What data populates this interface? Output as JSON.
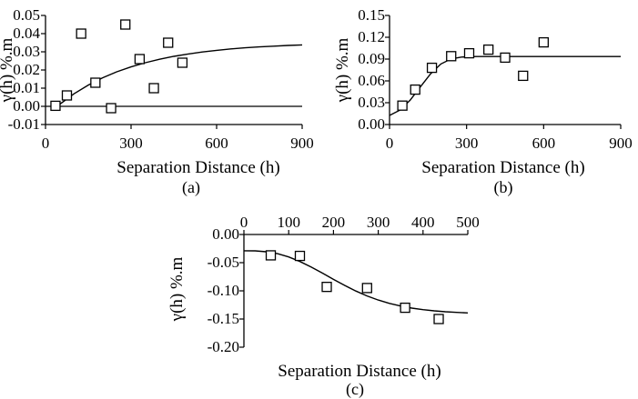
{
  "chart_data": [
    {
      "type": "scatter",
      "panel_label": "(a)",
      "xlabel": "Separation Distance (h)",
      "ylabel": "γ(h) %.m",
      "xlim": [
        0,
        900
      ],
      "ylim": [
        -0.01,
        0.05
      ],
      "xticks": [
        "0",
        "300",
        "600",
        "900"
      ],
      "yticks": [
        "-0.01",
        "0.00",
        "0.01",
        "0.02",
        "0.03",
        "0.04",
        "0.05"
      ],
      "zero_line": true,
      "points": [
        [
          35,
          0.0003
        ],
        [
          75,
          0.006
        ],
        [
          125,
          0.04
        ],
        [
          175,
          0.013
        ],
        [
          230,
          -0.001
        ],
        [
          280,
          0.045
        ],
        [
          330,
          0.026
        ],
        [
          380,
          0.01
        ],
        [
          430,
          0.035
        ],
        [
          480,
          0.024
        ]
      ],
      "model_curve": [
        [
          40,
          0.0
        ],
        [
          100,
          0.0069
        ],
        [
          150,
          0.0117
        ],
        [
          200,
          0.0157
        ],
        [
          250,
          0.019
        ],
        [
          300,
          0.0217
        ],
        [
          350,
          0.024
        ],
        [
          400,
          0.0259
        ],
        [
          450,
          0.0275
        ],
        [
          500,
          0.0288
        ],
        [
          550,
          0.0299
        ],
        [
          600,
          0.0308
        ],
        [
          650,
          0.0316
        ],
        [
          700,
          0.0322
        ],
        [
          750,
          0.0327
        ],
        [
          800,
          0.0331
        ],
        [
          850,
          0.0335
        ],
        [
          900,
          0.0338
        ]
      ]
    },
    {
      "type": "scatter",
      "panel_label": "(b)",
      "xlabel": "Separation Distance (h)",
      "ylabel": "γ(h) %.m",
      "xlim": [
        0,
        900
      ],
      "ylim": [
        0,
        0.15
      ],
      "xticks": [
        "0",
        "300",
        "600",
        "900"
      ],
      "yticks": [
        "0.00",
        "0.03",
        "0.06",
        "0.09",
        "0.12",
        "0.15"
      ],
      "zero_line": false,
      "points": [
        [
          50,
          0.026
        ],
        [
          100,
          0.048
        ],
        [
          165,
          0.078
        ],
        [
          240,
          0.094
        ],
        [
          310,
          0.098
        ],
        [
          385,
          0.103
        ],
        [
          450,
          0.092
        ],
        [
          520,
          0.067
        ],
        [
          600,
          0.113
        ]
      ],
      "model_curve": [
        [
          0,
          0.0125
        ],
        [
          40,
          0.0198
        ],
        [
          80,
          0.0334
        ],
        [
          120,
          0.0518
        ],
        [
          160,
          0.0699
        ],
        [
          200,
          0.0832
        ],
        [
          240,
          0.0903
        ],
        [
          280,
          0.0928
        ],
        [
          320,
          0.0934
        ],
        [
          340,
          0.0935
        ],
        [
          900,
          0.0935
        ]
      ]
    },
    {
      "type": "scatter",
      "panel_label": "(c)",
      "xlabel": "Separation Distance (h)",
      "ylabel": "γ(h) %.m",
      "xlim": [
        0,
        500
      ],
      "ylim": [
        -0.2,
        0
      ],
      "xaxis_position": "top",
      "xticks": [
        "0",
        "100",
        "200",
        "300",
        "400",
        "500"
      ],
      "yticks": [
        "0.00",
        "-0.05",
        "-0.10",
        "-0.15",
        "-0.20"
      ],
      "zero_line": false,
      "points": [
        [
          60,
          -0.037
        ],
        [
          125,
          -0.038
        ],
        [
          185,
          -0.093
        ],
        [
          275,
          -0.095
        ],
        [
          360,
          -0.13
        ],
        [
          435,
          -0.15
        ]
      ],
      "model_curve": [
        [
          0,
          -0.0288
        ],
        [
          25,
          -0.029
        ],
        [
          50,
          -0.0306
        ],
        [
          75,
          -0.0341
        ],
        [
          100,
          -0.0399
        ],
        [
          125,
          -0.0479
        ],
        [
          150,
          -0.0576
        ],
        [
          175,
          -0.0684
        ],
        [
          200,
          -0.0796
        ],
        [
          225,
          -0.0904
        ],
        [
          250,
          -0.1004
        ],
        [
          275,
          -0.109
        ],
        [
          300,
          -0.1163
        ],
        [
          325,
          -0.1223
        ],
        [
          350,
          -0.1269
        ],
        [
          375,
          -0.1306
        ],
        [
          400,
          -0.1334
        ],
        [
          425,
          -0.1355
        ],
        [
          450,
          -0.1371
        ],
        [
          475,
          -0.1383
        ],
        [
          500,
          -0.1392
        ]
      ]
    }
  ]
}
